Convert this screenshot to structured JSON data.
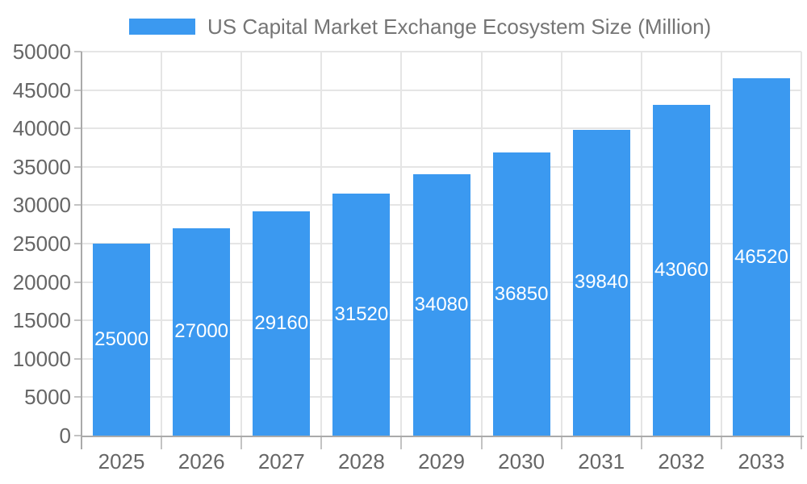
{
  "legend": {
    "label": "US Capital Market Exchange Ecosystem Size (Million)"
  },
  "chart_data": {
    "type": "bar",
    "title": "US Capital Market Exchange Ecosystem Size (Million)",
    "categories": [
      "2025",
      "2026",
      "2027",
      "2028",
      "2029",
      "2030",
      "2031",
      "2032",
      "2033"
    ],
    "series": [
      {
        "name": "US Capital Market Exchange Ecosystem Size (Million)",
        "values": [
          25000,
          27000,
          29160,
          31520,
          34080,
          36850,
          39840,
          43060,
          46520
        ]
      }
    ],
    "bar_value_labels": [
      "25000",
      "27000",
      "29160",
      "31520",
      "34080",
      "36850",
      "39840",
      "43060",
      "46520"
    ],
    "y_tick_labels": [
      "0",
      "5000",
      "10000",
      "15000",
      "20000",
      "25000",
      "30000",
      "35000",
      "40000",
      "45000",
      "50000"
    ],
    "xlabel": "",
    "ylabel": "",
    "ylim": [
      0,
      50000
    ],
    "ytick_step": 5000,
    "grid": true,
    "legend_position": "top",
    "colors": {
      "bar": "#3B99F0",
      "bar_label": "#ffffff",
      "grid": "#e5e5e5",
      "axis_line": "#aaaaaa",
      "tick": "#c3c3c3",
      "axis_label": "#666666",
      "legend_text": "#757575"
    }
  }
}
